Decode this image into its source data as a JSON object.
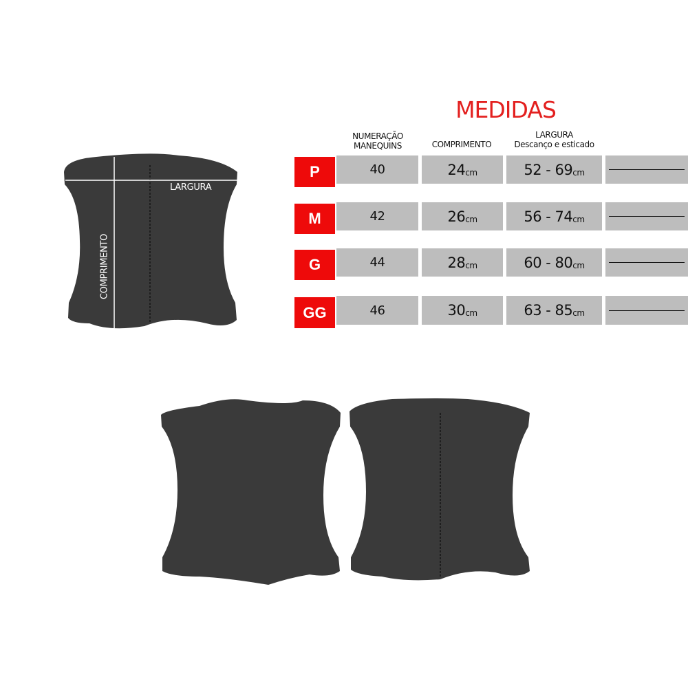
{
  "title": "MEDIDAS",
  "headers": {
    "numeracao": [
      "NUMERAÇÃO",
      "MANEQUINS"
    ],
    "comprimento": "COMPRIMENTO",
    "largura": [
      "LARGURA",
      "Descanço e esticado"
    ]
  },
  "unit": "cm",
  "rows": [
    {
      "size": "P",
      "manequim": "40",
      "comprimento": "24",
      "largura": "52 - 69"
    },
    {
      "size": "M",
      "manequim": "42",
      "comprimento": "26",
      "largura": "56 - 74"
    },
    {
      "size": "G",
      "manequim": "44",
      "comprimento": "28",
      "largura": "60 - 80"
    },
    {
      "size": "GG",
      "manequim": "46",
      "comprimento": "30",
      "largura": "63 - 85"
    }
  ],
  "diagram": {
    "width_label": "LARGURA",
    "length_label": "COMPRIMENTO"
  },
  "colors": {
    "accent": "#e3201f",
    "size_badge": "#ee0a0a",
    "cell": "#bdbdbd",
    "garment": "#3a3a3a"
  }
}
